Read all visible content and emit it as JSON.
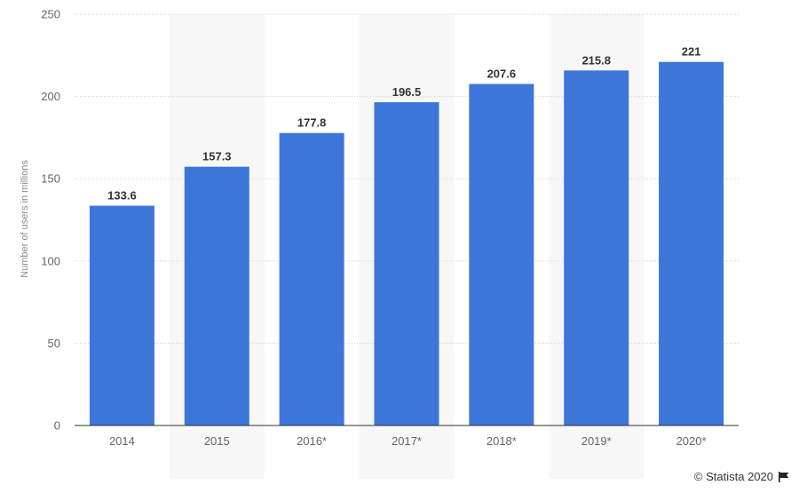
{
  "chart_data": {
    "type": "bar",
    "categories": [
      "2014",
      "2015",
      "2016*",
      "2017*",
      "2018*",
      "2019*",
      "2020*"
    ],
    "values": [
      133.6,
      157.3,
      177.8,
      196.5,
      207.6,
      215.8,
      221
    ],
    "value_labels": [
      "133.6",
      "157.3",
      "177.8",
      "196.5",
      "207.6",
      "215.8",
      "221"
    ],
    "title": "",
    "xlabel": "",
    "ylabel": "Number of users in millions",
    "ylim": [
      0,
      250
    ],
    "yticks": [
      "0",
      "50",
      "100",
      "150",
      "200",
      "250"
    ],
    "grid": true,
    "legend": "none",
    "bar_color": "#3d76d8"
  },
  "footer": {
    "credit": "© Statista 2020",
    "flag_icon": "flag-icon"
  }
}
